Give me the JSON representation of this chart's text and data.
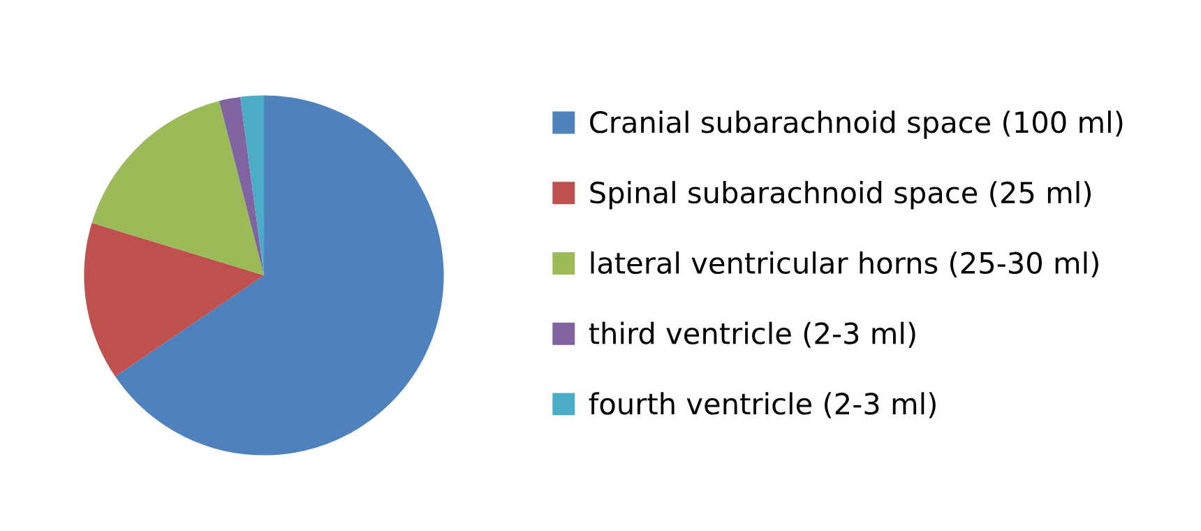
{
  "chart_data": {
    "type": "pie",
    "categories": [
      "Cranial subarachnoid space (100 ml)",
      "Spinal subarachnoid space (25 ml)",
      "lateral ventricular horns (25-30 ml)",
      "third ventricle (2-3 ml)",
      "fourth ventricle (2-3 ml)"
    ],
    "values": [
      65.5,
      14.2,
      16.3,
      1.9,
      2.1
    ],
    "colors": [
      "#4f81bd",
      "#c0504d",
      "#9bbb59",
      "#8064a2",
      "#4bacc6"
    ],
    "legend": "right"
  }
}
